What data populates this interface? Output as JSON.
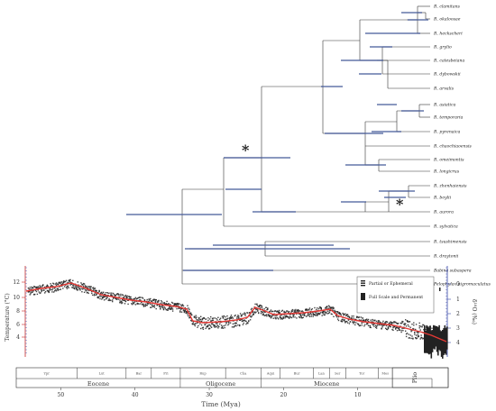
{
  "tree": {
    "tips": [
      "R. clamitans",
      "R. okaloosae",
      "R. heckscheri",
      "R. grylio",
      "R. catesbeiana",
      "R. dybowskii",
      "R. arvalis",
      "R. asiatica",
      "R. temporaria",
      "R. pyrenaica",
      "R. chaochiaoensis",
      "R. omeimontis",
      "R. longicrus",
      "R. zhenhaiensis",
      "R. boylii",
      "R. aurora",
      "R. sylvatica",
      "R. tsushimensis",
      "R. draytonii",
      "Babina subaspera",
      "Pelophylax nigromaculatus"
    ],
    "tip_colors": {
      "edge": "#333333",
      "bar": "#4a5f9c"
    },
    "markers": [
      "*",
      "*"
    ]
  },
  "climate": {
    "y_left_label": "Temperature (°C)",
    "y_left_ticks": [
      "12",
      "10",
      "8",
      "6",
      "4"
    ],
    "y_right_label": "δ¹⁸O (‰)",
    "y_right_ticks": [
      "0",
      "1",
      "2",
      "3",
      "4"
    ],
    "legend": [
      "Partial or Ephemeral",
      "Full Scale and Permanent"
    ],
    "colors": {
      "left_axis": "#c62828",
      "right_axis": "#3747a8",
      "trend": "#e53935",
      "scatter": "#222222"
    }
  },
  "timescale": {
    "ages": [
      {
        "label": "Ypr"
      },
      {
        "label": "Lut"
      },
      {
        "label": "Bar"
      },
      {
        "label": "Pri"
      },
      {
        "label": "Rup"
      },
      {
        "label": "Cha"
      },
      {
        "label": "Aqui"
      },
      {
        "label": "Bur"
      },
      {
        "label": "Lan"
      },
      {
        "label": "Ser"
      },
      {
        "label": "Tor"
      },
      {
        "label": "Mes"
      }
    ],
    "epochs": [
      {
        "label": "Eocene"
      },
      {
        "label": "Oligocene"
      },
      {
        "label": "Miocene"
      },
      {
        "label": "Plio"
      }
    ],
    "x_ticks": [
      "50",
      "40",
      "30",
      "20",
      "10"
    ],
    "xlabel": "Time (Mya)"
  }
}
